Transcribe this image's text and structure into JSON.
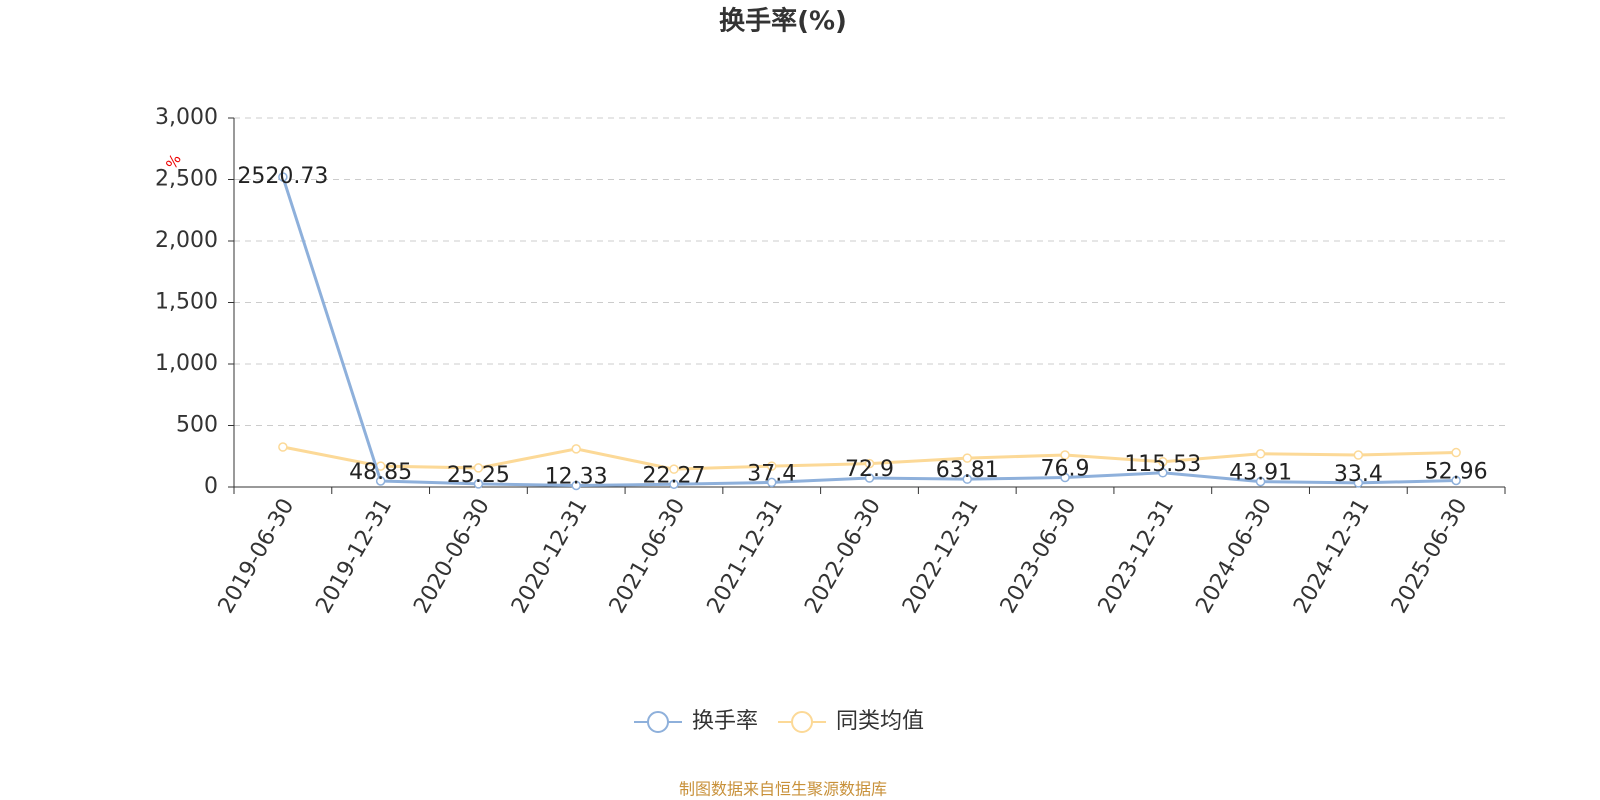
{
  "chart_data": {
    "type": "line",
    "title": "换手率(%)",
    "y_unit": "%",
    "categories": [
      "2019-06-30",
      "2019-12-31",
      "2020-06-30",
      "2020-12-31",
      "2021-06-30",
      "2021-12-31",
      "2022-06-30",
      "2022-12-31",
      "2023-06-30",
      "2023-12-31",
      "2024-06-30",
      "2024-12-31",
      "2025-06-30"
    ],
    "series": [
      {
        "name": "换手率",
        "color": "#8eb0db",
        "values": [
          2520.73,
          48.85,
          25.25,
          12.33,
          22.27,
          37.4,
          72.9,
          63.81,
          76.9,
          115.53,
          43.91,
          33.4,
          52.96
        ],
        "show_labels": true
      },
      {
        "name": "同类均值",
        "color": "#fcd997",
        "values": [
          325,
          170,
          155,
          310,
          145,
          170,
          190,
          235,
          260,
          205,
          270,
          260,
          280
        ],
        "show_labels": false
      }
    ],
    "ylim": [
      0,
      3000
    ],
    "yticks": [
      0,
      500,
      {
        "value": 1000,
        "label": "1,000"
      },
      {
        "value": 1500,
        "label": "1,500"
      },
      {
        "value": 2000,
        "label": "2,000"
      },
      {
        "value": 2500,
        "label": "2,500"
      },
      {
        "value": 3000,
        "label": "3,000"
      }
    ],
    "grid": true,
    "source": "制图数据来自恒生聚源数据库"
  }
}
